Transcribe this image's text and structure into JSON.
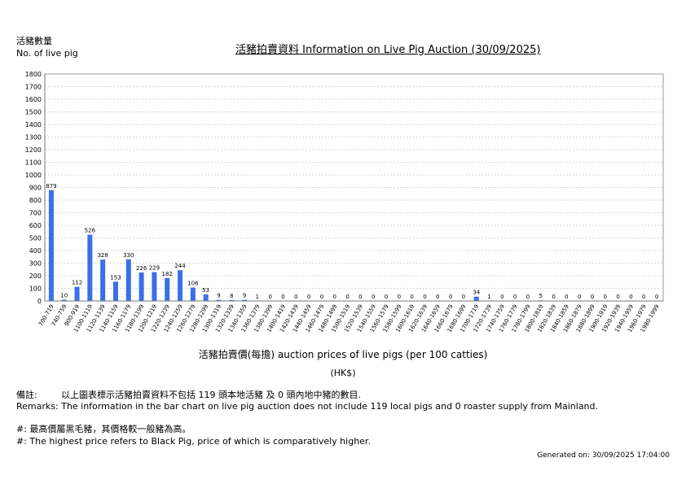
{
  "header": {
    "ylabel_zh": "活豬數量",
    "ylabel_en": "No. of live pig",
    "title": "活豬拍賣資料 Information on Live Pig Auction (30/09/2025)"
  },
  "footer": {
    "xlabel": "活豬拍賣價(每擔) auction prices of live pigs (per 100 catties)",
    "unit": "(HK$)",
    "note_zh_prefix": "備註:",
    "note_zh": "以上圖表標示活豬拍賣資料不包括 119 頭本地活豬 及 0 頭內地中豬的數目.",
    "note_en": "Remarks: The information in the bar chart on live pig auction does not include 119 local pigs and 0 roaster supply from Mainland.",
    "note2_zh": "#: 最高價屬黑毛豬，其價格較一般豬為高。",
    "note2_en": "#: The highest price refers to Black Pig, price of which is comparatively higher.",
    "generated": "Generated on: 30/09/2025 17:04:00"
  },
  "chart_data": {
    "type": "bar",
    "title": "活豬拍賣資料 Information on Live Pig Auction (30/09/2025)",
    "xlabel": "活豬拍賣價(每擔) auction prices of live pigs (per 100 catties)",
    "ylabel": "活豬數量 No. of live pig",
    "ylim": [
      0,
      1800
    ],
    "yticks": [
      0,
      100,
      200,
      300,
      400,
      500,
      600,
      700,
      800,
      900,
      1000,
      1100,
      1200,
      1300,
      1400,
      1500,
      1600,
      1700,
      1800
    ],
    "grid": true,
    "bar_color": "#3a6fe8",
    "categories": [
      "700-719",
      "740-759",
      "900-919",
      "1100-1119",
      "1120-1139",
      "1140-1159",
      "1160-1179",
      "1180-1199",
      "1200-1219",
      "1220-1239",
      "1240-1259",
      "1260-1279",
      "1280-1299",
      "1300-1319",
      "1320-1339",
      "1340-1359",
      "1360-1379",
      "1380-1399",
      "1400-1419",
      "1420-1439",
      "1440-1459",
      "1460-1479",
      "1480-1499",
      "1500-1519",
      "1520-1539",
      "1540-1559",
      "1560-1579",
      "1580-1599",
      "1600-1619",
      "1620-1639",
      "1640-1659",
      "1660-1679",
      "1680-1699",
      "1700-1719",
      "1720-1739",
      "1740-1759",
      "1760-1779",
      "1780-1799",
      "1800-1819",
      "1820-1839",
      "1840-1859",
      "1860-1879",
      "1880-1899",
      "1900-1919",
      "1920-1939",
      "1940-1959",
      "1960-1979",
      "1980-1999"
    ],
    "values": [
      879,
      10,
      112,
      526,
      328,
      153,
      330,
      226,
      229,
      182,
      244,
      106,
      53,
      9,
      8,
      9,
      1,
      0,
      0,
      0,
      0,
      0,
      0,
      0,
      0,
      0,
      0,
      0,
      0,
      0,
      0,
      0,
      0,
      34,
      1,
      0,
      0,
      0,
      5,
      0,
      0,
      0,
      0,
      0,
      0,
      0,
      0,
      0
    ]
  }
}
